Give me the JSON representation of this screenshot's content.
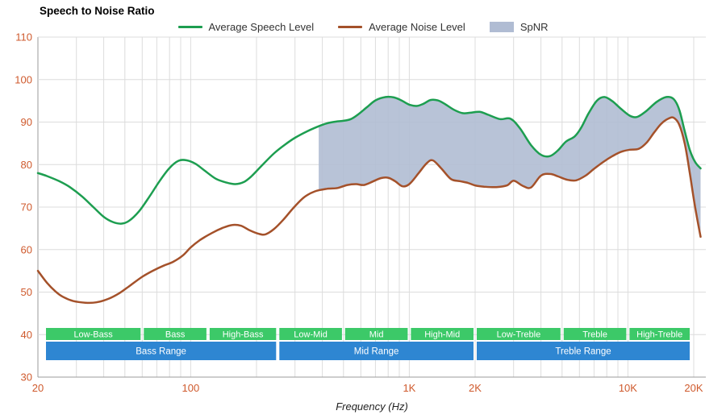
{
  "title": "Speech to Noise Ratio",
  "xlabel": "Frequency (Hz)",
  "legend": {
    "speech": {
      "label": "Average Speech Level",
      "color": "#1d9e50"
    },
    "noise": {
      "label": "Average Noise Level",
      "color": "#a4512a"
    },
    "spnr": {
      "label": "SpNR",
      "color": "#b0bcd3"
    }
  },
  "colors": {
    "axis_label": "#cf5a2d",
    "grid": "#dcdcdc",
    "axis_line": "#9b9b9b",
    "band_sub": "#3cc968",
    "band_range": "#2e86d2",
    "band_text": "#ffffff"
  },
  "chart_data": {
    "type": "line",
    "x_scale": "log",
    "title": "Speech to Noise Ratio",
    "xlabel": "Frequency (Hz)",
    "ylim": [
      30,
      110
    ],
    "xlim": [
      20,
      22600
    ],
    "grid": true,
    "legend_position": "top-center",
    "y_ticks": [
      30,
      40,
      50,
      60,
      70,
      80,
      90,
      100,
      110
    ],
    "x_ticks": [
      {
        "f": 20,
        "label": "20"
      },
      {
        "f": 100,
        "label": "100"
      },
      {
        "f": 1000,
        "label": "1K"
      },
      {
        "f": 2000,
        "label": "2K"
      },
      {
        "f": 10000,
        "label": "10K"
      },
      {
        "f": 20000,
        "label": "20K"
      }
    ],
    "series": [
      {
        "name": "Average Speech Level",
        "color": "#1d9e50",
        "points": [
          [
            20,
            78
          ],
          [
            22,
            77.3
          ],
          [
            25,
            76.1
          ],
          [
            28,
            74.7
          ],
          [
            32,
            72.4
          ],
          [
            36,
            69.9
          ],
          [
            40,
            67.7
          ],
          [
            44,
            66.5
          ],
          [
            48,
            66.1
          ],
          [
            52,
            66.7
          ],
          [
            58,
            69
          ],
          [
            65,
            72.6
          ],
          [
            72,
            76.1
          ],
          [
            80,
            79.2
          ],
          [
            88,
            80.9
          ],
          [
            96,
            81
          ],
          [
            105,
            80.2
          ],
          [
            115,
            78.7
          ],
          [
            130,
            76.7
          ],
          [
            145,
            75.8
          ],
          [
            160,
            75.4
          ],
          [
            175,
            75.9
          ],
          [
            190,
            77.3
          ],
          [
            210,
            79.6
          ],
          [
            240,
            82.6
          ],
          [
            270,
            84.7
          ],
          [
            300,
            86.3
          ],
          [
            340,
            87.8
          ],
          [
            380,
            88.9
          ],
          [
            420,
            89.7
          ],
          [
            460,
            90.1
          ],
          [
            500,
            90.3
          ],
          [
            540,
            90.7
          ],
          [
            580,
            91.7
          ],
          [
            640,
            93.5
          ],
          [
            700,
            95.1
          ],
          [
            780,
            95.9
          ],
          [
            850,
            95.8
          ],
          [
            920,
            95.1
          ],
          [
            1000,
            94.1
          ],
          [
            1080,
            93.8
          ],
          [
            1160,
            94.3
          ],
          [
            1250,
            95.2
          ],
          [
            1350,
            95.1
          ],
          [
            1450,
            94.3
          ],
          [
            1600,
            92.9
          ],
          [
            1750,
            92.1
          ],
          [
            1900,
            92.2
          ],
          [
            2100,
            92.4
          ],
          [
            2300,
            91.7
          ],
          [
            2600,
            90.7
          ],
          [
            2900,
            90.8
          ],
          [
            3200,
            88.6
          ],
          [
            3600,
            84.6
          ],
          [
            4000,
            82.3
          ],
          [
            4400,
            82
          ],
          [
            4800,
            83.4
          ],
          [
            5200,
            85.4
          ],
          [
            5700,
            86.6
          ],
          [
            6100,
            88.6
          ],
          [
            6600,
            92
          ],
          [
            7200,
            95
          ],
          [
            7800,
            95.9
          ],
          [
            8500,
            94.9
          ],
          [
            9300,
            93.1
          ],
          [
            10200,
            91.5
          ],
          [
            11000,
            91.2
          ],
          [
            12000,
            92.4
          ],
          [
            13500,
            94.7
          ],
          [
            15000,
            95.9
          ],
          [
            16200,
            95.4
          ],
          [
            17200,
            92.8
          ],
          [
            18200,
            87.8
          ],
          [
            19200,
            83.4
          ],
          [
            20300,
            80.6
          ],
          [
            21500,
            79.1
          ]
        ]
      },
      {
        "name": "Average Noise Level",
        "color": "#a4512a",
        "points": [
          [
            20,
            55
          ],
          [
            22,
            52.2
          ],
          [
            24,
            50.2
          ],
          [
            26,
            48.9
          ],
          [
            29,
            47.9
          ],
          [
            33,
            47.5
          ],
          [
            37,
            47.6
          ],
          [
            42,
            48.4
          ],
          [
            47,
            49.7
          ],
          [
            53,
            51.6
          ],
          [
            60,
            53.6
          ],
          [
            67,
            55
          ],
          [
            75,
            56.2
          ],
          [
            83,
            57.1
          ],
          [
            92,
            58.6
          ],
          [
            100,
            60.5
          ],
          [
            110,
            62.2
          ],
          [
            125,
            63.9
          ],
          [
            140,
            65.1
          ],
          [
            155,
            65.8
          ],
          [
            170,
            65.6
          ],
          [
            185,
            64.6
          ],
          [
            205,
            63.7
          ],
          [
            220,
            63.6
          ],
          [
            240,
            64.8
          ],
          [
            265,
            67
          ],
          [
            295,
            69.8
          ],
          [
            330,
            72.3
          ],
          [
            370,
            73.7
          ],
          [
            420,
            74.3
          ],
          [
            470,
            74.5
          ],
          [
            520,
            75.2
          ],
          [
            570,
            75.4
          ],
          [
            620,
            75.2
          ],
          [
            680,
            76
          ],
          [
            740,
            76.8
          ],
          [
            800,
            76.9
          ],
          [
            860,
            76.1
          ],
          [
            930,
            74.9
          ],
          [
            1000,
            75.4
          ],
          [
            1100,
            77.9
          ],
          [
            1200,
            80.3
          ],
          [
            1280,
            81
          ],
          [
            1400,
            79.1
          ],
          [
            1550,
            76.6
          ],
          [
            1700,
            76.1
          ],
          [
            1850,
            75.7
          ],
          [
            2000,
            75.1
          ],
          [
            2200,
            74.8
          ],
          [
            2500,
            74.7
          ],
          [
            2800,
            75.1
          ],
          [
            3000,
            76.2
          ],
          [
            3300,
            75
          ],
          [
            3600,
            74.6
          ],
          [
            4000,
            77.4
          ],
          [
            4400,
            77.8
          ],
          [
            4800,
            77.2
          ],
          [
            5300,
            76.4
          ],
          [
            5800,
            76.3
          ],
          [
            6400,
            77.4
          ],
          [
            7000,
            79
          ],
          [
            7700,
            80.6
          ],
          [
            8500,
            82
          ],
          [
            9300,
            83
          ],
          [
            10200,
            83.5
          ],
          [
            11200,
            83.7
          ],
          [
            12200,
            85.2
          ],
          [
            13200,
            87.6
          ],
          [
            14200,
            89.6
          ],
          [
            15300,
            90.8
          ],
          [
            16200,
            91
          ],
          [
            17200,
            89.3
          ],
          [
            18200,
            84.9
          ],
          [
            19200,
            77.9
          ],
          [
            20300,
            69.9
          ],
          [
            21500,
            63
          ]
        ]
      }
    ],
    "fill": {
      "name": "SpNR",
      "color": "#b0bcd3",
      "opacity": 0.9,
      "from_hz": 385,
      "between": [
        "Average Speech Level",
        "Average Noise Level"
      ]
    },
    "bands": {
      "sub": [
        {
          "label": "Low-Bass",
          "f1": 20,
          "f2": 60
        },
        {
          "label": "Bass",
          "f1": 60,
          "f2": 120
        },
        {
          "label": "High-Bass",
          "f1": 120,
          "f2": 250
        },
        {
          "label": "Low-Mid",
          "f1": 250,
          "f2": 500
        },
        {
          "label": "Mid",
          "f1": 500,
          "f2": 1000
        },
        {
          "label": "High-Mid",
          "f1": 1000,
          "f2": 2000
        },
        {
          "label": "Low-Treble",
          "f1": 2000,
          "f2": 5000
        },
        {
          "label": "Treble",
          "f1": 5000,
          "f2": 10000
        },
        {
          "label": "High-Treble",
          "f1": 10000,
          "f2": 20000
        }
      ],
      "ranges": [
        {
          "label": "Bass Range",
          "f1": 20,
          "f2": 250
        },
        {
          "label": "Mid Range",
          "f1": 250,
          "f2": 2000
        },
        {
          "label": "Treble Range",
          "f1": 2000,
          "f2": 20000
        }
      ]
    }
  }
}
